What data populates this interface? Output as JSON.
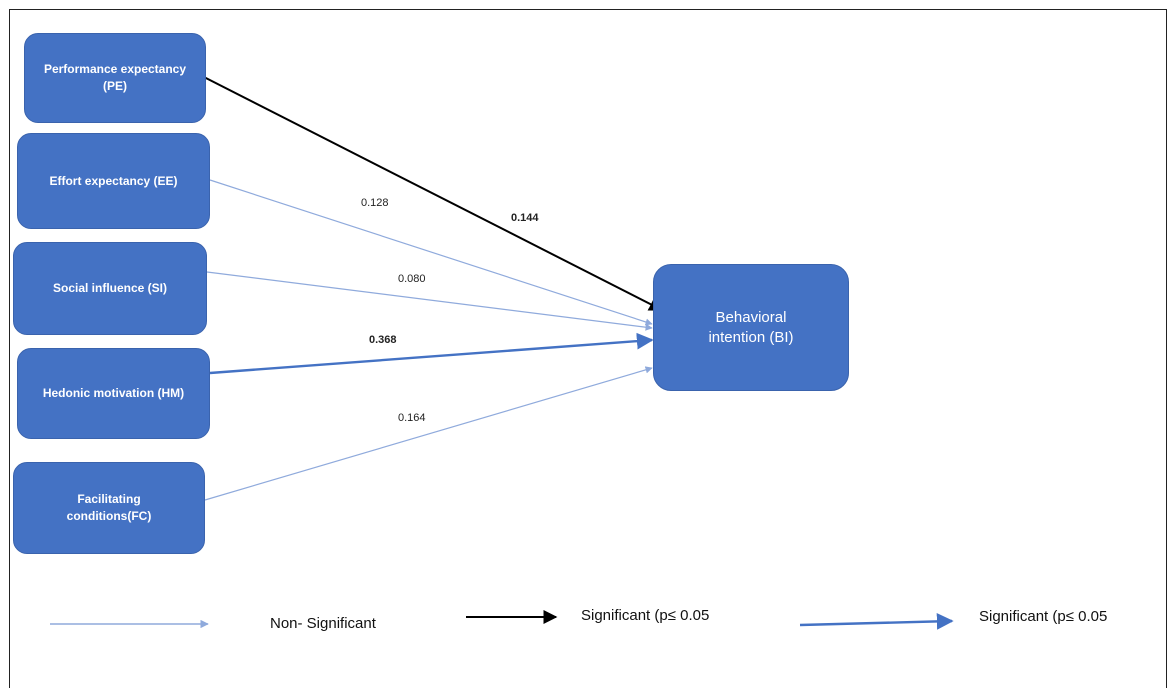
{
  "diagram": {
    "colors": {
      "node_fill": "#4472c4",
      "significant_black": "#000000",
      "significant_blue": "#4472c4",
      "non_significant": "#8faadc"
    },
    "nodes": {
      "pe": "Performance expectancy (PE)",
      "ee": "Effort expectancy (EE)",
      "si": "Social influence (SI)",
      "hm": "Hedonic motivation (HM)",
      "fc": "Facilitating conditions(FC)",
      "bi": "Behavioral intention (BI)"
    },
    "paths": [
      {
        "from": "Performance expectancy (PE)",
        "to": "Behavioral intention (BI)",
        "coefficient": "0.144",
        "style": "significant-black"
      },
      {
        "from": "Effort expectancy (EE)",
        "to": "Behavioral intention (BI)",
        "coefficient": "0.128",
        "style": "non-significant"
      },
      {
        "from": "Social influence (SI)",
        "to": "Behavioral intention (BI)",
        "coefficient": "0.080",
        "style": "non-significant"
      },
      {
        "from": "Hedonic motivation (HM)",
        "to": "Behavioral intention (BI)",
        "coefficient": "0.368",
        "style": "significant-blue"
      },
      {
        "from": "Facilitating conditions(FC)",
        "to": "Behavioral intention (BI)",
        "coefficient": "0.164",
        "style": "non-significant"
      }
    ],
    "coefficients": {
      "pe": "0.144",
      "ee": "0.128",
      "si": "0.080",
      "hm": "0.368",
      "fc": "0.164"
    },
    "legend": {
      "non_significant": "Non- Significant",
      "significant_black": "Significant  (p≤ 0.05",
      "significant_blue": "Significant  (p≤ 0.05"
    }
  }
}
